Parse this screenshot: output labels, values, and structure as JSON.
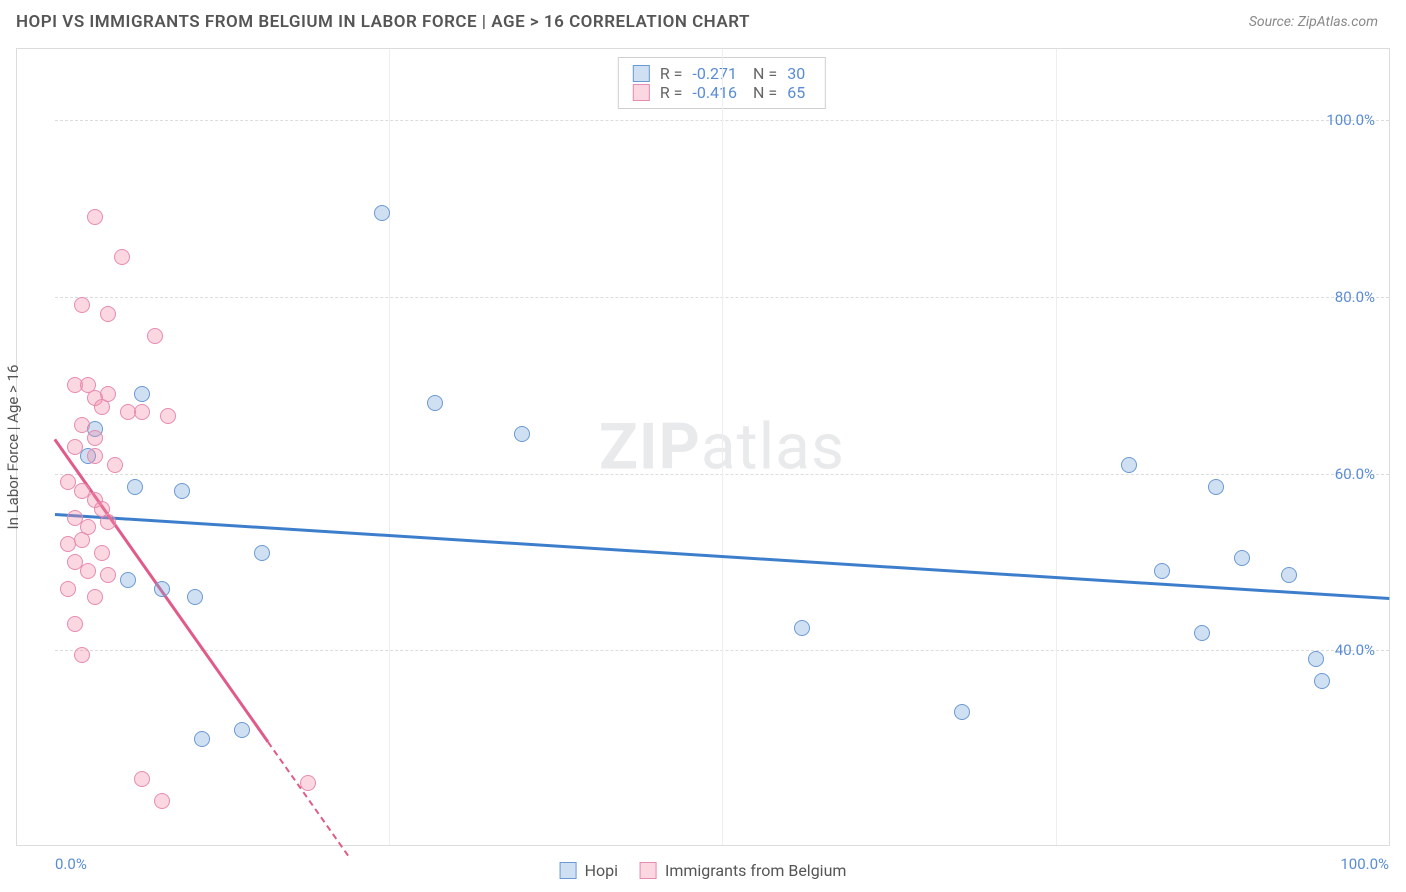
{
  "title": "HOPI VS IMMIGRANTS FROM BELGIUM IN LABOR FORCE | AGE > 16 CORRELATION CHART",
  "source": "Source: ZipAtlas.com",
  "ylabel": "In Labor Force | Age > 16",
  "watermark_zip": "ZIP",
  "watermark_atlas": "atlas",
  "chart": {
    "type": "scatter",
    "background_color": "#ffffff",
    "grid_color": "#dcdcdc",
    "xlim": [
      0,
      100
    ],
    "ylim": [
      18,
      108
    ],
    "yticks": [
      40,
      60,
      80,
      100
    ],
    "ytick_labels": [
      "40.0%",
      "60.0%",
      "80.0%",
      "100.0%"
    ],
    "xtick_min_label": "0.0%",
    "xtick_max_label": "100.0%",
    "vgrid_x": [
      25,
      50,
      75
    ],
    "series": [
      {
        "name": "Hopi",
        "color_fill": "rgba(120,165,220,0.35)",
        "color_stroke": "#6b99d4",
        "regression_color": "#3d7ecc",
        "reg_y_at_x0": 55.5,
        "reg_y_at_x100": 46.0,
        "reg_dash_from_x": null,
        "points": [
          [
            24.5,
            89.5
          ],
          [
            28.5,
            68.0
          ],
          [
            35.0,
            64.5
          ],
          [
            6.5,
            69.0
          ],
          [
            3.0,
            65.0
          ],
          [
            6.0,
            58.5
          ],
          [
            9.5,
            58.0
          ],
          [
            5.5,
            48.0
          ],
          [
            8.0,
            47.0
          ],
          [
            10.5,
            46.0
          ],
          [
            15.5,
            51.0
          ],
          [
            11.0,
            30.0
          ],
          [
            14.0,
            31.0
          ],
          [
            56.0,
            42.5
          ],
          [
            68.0,
            33.0
          ],
          [
            80.5,
            61.0
          ],
          [
            83.0,
            49.0
          ],
          [
            87.0,
            58.5
          ],
          [
            86.0,
            42.0
          ],
          [
            89.0,
            50.5
          ],
          [
            92.5,
            48.5
          ],
          [
            94.5,
            39.0
          ],
          [
            95.0,
            36.5
          ],
          [
            2.5,
            62.0
          ]
        ]
      },
      {
        "name": "Immigrants from Belgium",
        "color_fill": "rgba(240,140,170,0.35)",
        "color_stroke": "#e78bb0",
        "regression_color": "#e05a8a",
        "reg_y_at_x0": 64.0,
        "reg_y_at_x100_full": -150.0,
        "reg_solid_to_x": 16,
        "reg_dash_to_x": 22,
        "points": [
          [
            3.0,
            89.0
          ],
          [
            5.0,
            84.5
          ],
          [
            2.0,
            79.0
          ],
          [
            4.0,
            78.0
          ],
          [
            7.5,
            75.5
          ],
          [
            1.5,
            70.0
          ],
          [
            2.5,
            70.0
          ],
          [
            3.0,
            68.5
          ],
          [
            3.5,
            67.5
          ],
          [
            4.0,
            69.0
          ],
          [
            5.5,
            67.0
          ],
          [
            6.5,
            67.0
          ],
          [
            8.5,
            66.5
          ],
          [
            2.0,
            65.5
          ],
          [
            3.0,
            64.0
          ],
          [
            1.5,
            63.0
          ],
          [
            3.0,
            62.0
          ],
          [
            4.5,
            61.0
          ],
          [
            1.0,
            59.0
          ],
          [
            2.0,
            58.0
          ],
          [
            3.0,
            57.0
          ],
          [
            3.5,
            56.0
          ],
          [
            1.5,
            55.0
          ],
          [
            2.5,
            54.0
          ],
          [
            4.0,
            54.5
          ],
          [
            1.0,
            52.0
          ],
          [
            2.0,
            52.5
          ],
          [
            3.5,
            51.0
          ],
          [
            1.5,
            50.0
          ],
          [
            2.5,
            49.0
          ],
          [
            4.0,
            48.5
          ],
          [
            1.0,
            47.0
          ],
          [
            3.0,
            46.0
          ],
          [
            1.5,
            43.0
          ],
          [
            2.0,
            39.5
          ],
          [
            6.5,
            25.5
          ],
          [
            8.0,
            23.0
          ],
          [
            19.0,
            25.0
          ]
        ]
      }
    ]
  },
  "stats": {
    "r_label": "R =",
    "n_label": "N =",
    "rows": [
      {
        "swatch": "blue",
        "r": "-0.271",
        "n": "30"
      },
      {
        "swatch": "pink",
        "r": "-0.416",
        "n": "65"
      }
    ]
  },
  "legend": {
    "items": [
      {
        "swatch": "blue",
        "label": "Hopi"
      },
      {
        "swatch": "pink",
        "label": "Immigrants from Belgium"
      }
    ]
  }
}
